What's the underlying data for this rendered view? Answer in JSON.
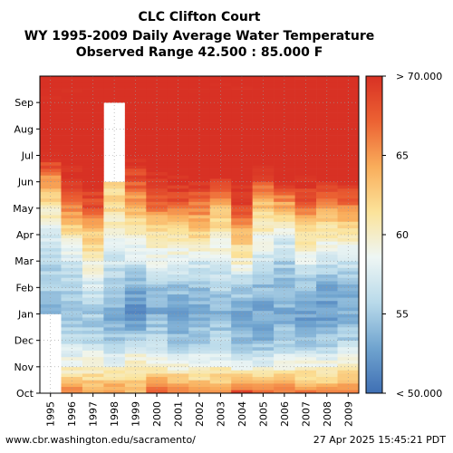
{
  "title_lines": [
    "CLC Clifton Court",
    "WY 1995-2009 Daily Average Water Temperature",
    "Observed Range 42.500 : 85.000 F"
  ],
  "footer": {
    "left": "www.cbr.washington.edu/sacramento/",
    "right": "27 Apr 2025 15:45:21 PDT"
  },
  "chart_data": {
    "type": "heatmap",
    "x_categories": [
      "1995",
      "1996",
      "1997",
      "1998",
      "1999",
      "2000",
      "2001",
      "2002",
      "2003",
      "2004",
      "2005",
      "2006",
      "2007",
      "2008",
      "2009"
    ],
    "y_categories": [
      "Oct",
      "Nov",
      "Dec",
      "Jan",
      "Feb",
      "Mar",
      "Apr",
      "May",
      "Jun",
      "Jul",
      "Aug",
      "Sep"
    ],
    "colorbar": {
      "min": 50,
      "max": 70,
      "tick_values": [
        50,
        55,
        60,
        65,
        70
      ],
      "tick_labels": [
        "< 50.000",
        "55",
        "60",
        "65",
        "> 70.000"
      ],
      "color_stops": [
        "#3f6fb4",
        "#70a4cf",
        "#b9daea",
        "#eef6f4",
        "#fbe39a",
        "#f9ad5b",
        "#ec6233",
        "#d83124"
      ]
    },
    "monthly_mean_by_year": [
      {
        "year": "1995",
        "values": [
          null,
          null,
          null,
          53.5,
          55.0,
          56.0,
          58.0,
          61.0,
          65.0,
          70.5,
          71.5,
          71.0
        ]
      },
      {
        "year": "1996",
        "values": [
          66.5,
          59.0,
          56.0,
          54.0,
          56.0,
          57.0,
          61.0,
          66.0,
          70.0,
          71.5,
          72.0,
          71.0
        ]
      },
      {
        "year": "1997",
        "values": [
          64.0,
          60.0,
          55.5,
          55.0,
          57.0,
          60.0,
          63.0,
          68.0,
          71.0,
          72.0,
          72.5,
          71.0
        ]
      },
      {
        "year": "1998",
        "values": [
          65.0,
          59.0,
          54.5,
          53.5,
          55.0,
          57.0,
          59.0,
          62.0,
          null,
          null,
          null,
          71.0
        ]
      },
      {
        "year": "1999",
        "values": [
          63.0,
          61.0,
          55.0,
          52.0,
          53.5,
          57.0,
          60.0,
          64.0,
          68.0,
          71.0,
          72.0,
          71.5
        ]
      },
      {
        "year": "2000",
        "values": [
          67.0,
          59.5,
          56.0,
          53.5,
          55.0,
          58.5,
          61.0,
          66.5,
          70.0,
          71.5,
          72.0,
          71.5
        ]
      },
      {
        "year": "2001",
        "values": [
          66.5,
          59.0,
          54.5,
          53.0,
          54.5,
          58.0,
          61.0,
          67.0,
          70.5,
          72.0,
          72.0,
          71.0
        ]
      },
      {
        "year": "2002",
        "values": [
          65.5,
          58.5,
          55.0,
          53.5,
          54.5,
          57.5,
          62.0,
          66.0,
          70.0,
          71.5,
          72.0,
          71.0
        ]
      },
      {
        "year": "2003",
        "values": [
          65.0,
          59.5,
          55.5,
          54.0,
          55.5,
          58.0,
          60.5,
          63.5,
          69.5,
          72.0,
          72.0,
          71.0
        ]
      },
      {
        "year": "2004",
        "values": [
          68.0,
          58.0,
          54.0,
          53.5,
          55.0,
          60.0,
          63.5,
          68.5,
          71.0,
          72.0,
          71.5,
          70.5
        ]
      },
      {
        "year": "2005",
        "values": [
          66.0,
          58.0,
          53.5,
          53.0,
          54.5,
          57.0,
          59.5,
          63.0,
          68.0,
          72.0,
          72.5,
          71.0
        ]
      },
      {
        "year": "2006",
        "values": [
          66.5,
          59.0,
          55.0,
          53.5,
          54.0,
          55.5,
          58.0,
          64.0,
          70.0,
          72.5,
          72.0,
          71.0
        ]
      },
      {
        "year": "2007",
        "values": [
          65.5,
          59.5,
          54.0,
          52.5,
          54.5,
          58.0,
          61.5,
          67.0,
          70.5,
          72.0,
          72.0,
          71.0
        ]
      },
      {
        "year": "2008",
        "values": [
          65.0,
          59.0,
          54.5,
          52.5,
          53.5,
          57.0,
          60.5,
          64.5,
          70.0,
          72.5,
          72.5,
          71.0
        ]
      },
      {
        "year": "2009",
        "values": [
          66.0,
          60.0,
          55.0,
          53.5,
          54.0,
          57.0,
          60.5,
          66.0,
          70.5,
          72.0,
          72.0,
          71.0
        ]
      }
    ]
  }
}
